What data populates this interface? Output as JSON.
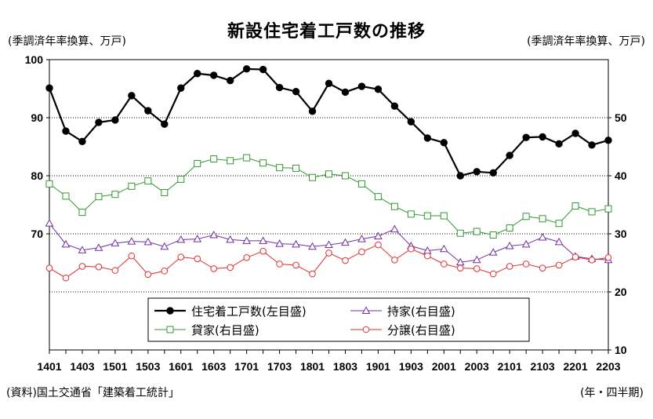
{
  "title": "新設住宅着工戸数の推移",
  "left_unit": "(季調済年率換算、万戸)",
  "right_unit": "(季調済年率換算、万戸)",
  "source": "(資料)国土交通省「建築着工統計」",
  "x_unit": "(年・四半期)",
  "chart_data": {
    "type": "line",
    "title": "新設住宅着工戸数の推移",
    "x": [
      "1401",
      "1402",
      "1403",
      "1404",
      "1501",
      "1502",
      "1503",
      "1504",
      "1601",
      "1602",
      "1603",
      "1604",
      "1701",
      "1702",
      "1703",
      "1704",
      "1801",
      "1802",
      "1803",
      "1804",
      "1901",
      "1902",
      "1903",
      "1904",
      "2001",
      "2002",
      "2003",
      "2004",
      "2101",
      "2102",
      "2103",
      "2104",
      "2201",
      "2202",
      "2203"
    ],
    "x_tick_labels": [
      "1401",
      "1403",
      "1501",
      "1503",
      "1601",
      "1603",
      "1701",
      "1703",
      "1801",
      "1803",
      "1901",
      "1903",
      "2001",
      "2003",
      "2101",
      "2103",
      "2201",
      "2203"
    ],
    "left_axis": {
      "ylim": [
        50,
        100
      ],
      "ticks": [
        "70",
        "80",
        "90",
        "100"
      ]
    },
    "right_axis": {
      "ylim": [
        10,
        60
      ],
      "ticks": [
        "10",
        "20",
        "30",
        "40",
        "50"
      ]
    },
    "grid": true,
    "legend_placement": "bottom-center",
    "series": [
      {
        "name": "住宅着工戸数(左目盛)",
        "axis": "left",
        "color": "#000000",
        "marker": "filled-circle",
        "values": [
          95.1,
          87.7,
          85.9,
          89.2,
          89.6,
          93.8,
          91.2,
          88.9,
          95.1,
          97.6,
          97.3,
          96.4,
          98.4,
          98.3,
          95.2,
          94.5,
          91.1,
          95.9,
          94.4,
          95.4,
          94.9,
          92.0,
          89.3,
          86.5,
          85.7,
          80.0,
          80.7,
          80.5,
          83.5,
          86.6,
          86.7,
          85.5,
          87.3,
          85.3,
          86.1
        ]
      },
      {
        "name": "持家(右目盛)",
        "axis": "right",
        "color": "#7030a0",
        "marker": "open-triangle",
        "values": [
          31.8,
          28.2,
          27.2,
          27.6,
          28.4,
          28.7,
          28.6,
          27.8,
          29.0,
          29.1,
          29.8,
          29.0,
          28.8,
          28.8,
          28.3,
          28.2,
          27.8,
          28.1,
          28.5,
          29.1,
          29.6,
          30.8,
          27.9,
          27.1,
          27.4,
          25.1,
          25.5,
          26.8,
          27.9,
          28.2,
          29.4,
          28.6,
          26.1,
          25.7,
          25.5
        ]
      },
      {
        "name": "貸家(右目盛)",
        "axis": "right",
        "color": "#339933",
        "marker": "open-square",
        "values": [
          38.6,
          36.5,
          33.7,
          36.4,
          36.8,
          38.2,
          39.1,
          37.1,
          39.4,
          42.1,
          42.9,
          42.6,
          43.1,
          42.2,
          41.4,
          41.3,
          39.7,
          40.3,
          40.0,
          38.6,
          36.4,
          34.7,
          33.4,
          33.1,
          33.1,
          30.1,
          30.4,
          29.8,
          31.0,
          33.0,
          32.6,
          31.8,
          34.8,
          33.8,
          34.3
        ]
      },
      {
        "name": "分譲(右目盛)",
        "axis": "right",
        "color": "#e03030",
        "marker": "open-circle",
        "values": [
          24.1,
          22.4,
          24.4,
          24.3,
          23.7,
          26.2,
          23.0,
          23.6,
          26.0,
          25.7,
          24.0,
          24.2,
          25.9,
          27.0,
          24.8,
          24.6,
          23.1,
          26.7,
          25.4,
          26.9,
          28.1,
          25.5,
          27.4,
          26.2,
          24.8,
          24.1,
          24.0,
          23.1,
          24.4,
          24.8,
          24.1,
          24.6,
          26.0,
          25.5,
          25.9
        ]
      }
    ]
  }
}
